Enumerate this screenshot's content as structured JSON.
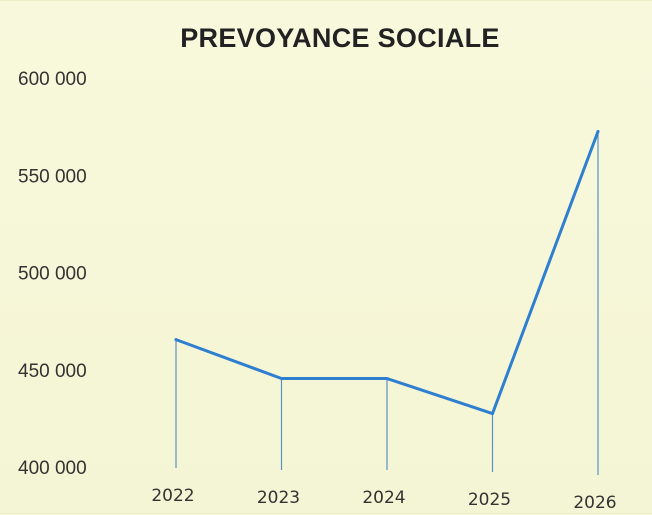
{
  "chart_data": {
    "type": "line",
    "title": "PREVOYANCE SOCIALE",
    "xlabel": "",
    "ylabel": "",
    "categories": [
      "2022",
      "2023",
      "2024",
      "2025",
      "2026"
    ],
    "series": [
      {
        "values": [
          466000,
          446000,
          446000,
          428000,
          573000
        ]
      }
    ],
    "ylim": [
      400000,
      600000
    ],
    "yticks": [
      400000,
      450000,
      500000,
      550000,
      600000
    ],
    "ytick_labels": [
      "400 000",
      "450 000",
      "500 000",
      "550 000",
      "600 000"
    ],
    "grid": false,
    "drop_lines": true,
    "legend": "none",
    "colors": {
      "line": "#2f7fd1",
      "drop_line": "#5a8fc8",
      "background": "#f6f7d8"
    }
  }
}
